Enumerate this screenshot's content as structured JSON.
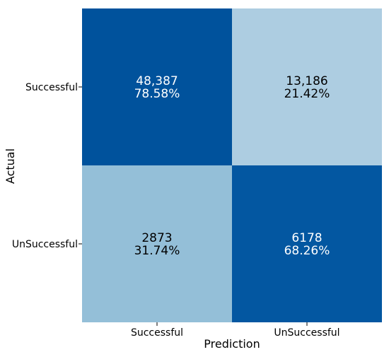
{
  "chart_data": {
    "type": "heatmap",
    "title": "",
    "xlabel": "Prediction",
    "ylabel": "Actual",
    "x_categories": [
      "Successful",
      "UnSuccessful"
    ],
    "y_categories": [
      "Successful",
      "UnSuccessful"
    ],
    "cells": [
      {
        "actual": "Successful",
        "predicted": "Successful",
        "count": "48,387",
        "percent": "78.58%",
        "fraction": 0.7858,
        "color": "#00529c",
        "text_color": "#ffffff"
      },
      {
        "actual": "Successful",
        "predicted": "UnSuccessful",
        "count": "13,186",
        "percent": "21.42%",
        "fraction": 0.2142,
        "color": "#adcde1",
        "text_color": "#000000"
      },
      {
        "actual": "UnSuccessful",
        "predicted": "Successful",
        "count": "2873",
        "percent": "31.74%",
        "fraction": 0.3174,
        "color": "#94bfd8",
        "text_color": "#000000"
      },
      {
        "actual": "UnSuccessful",
        "predicted": "UnSuccessful",
        "count": "6178",
        "percent": "68.26%",
        "fraction": 0.6826,
        "color": "#0357a1",
        "text_color": "#ffffff"
      }
    ],
    "grid": false,
    "legend": "none"
  }
}
